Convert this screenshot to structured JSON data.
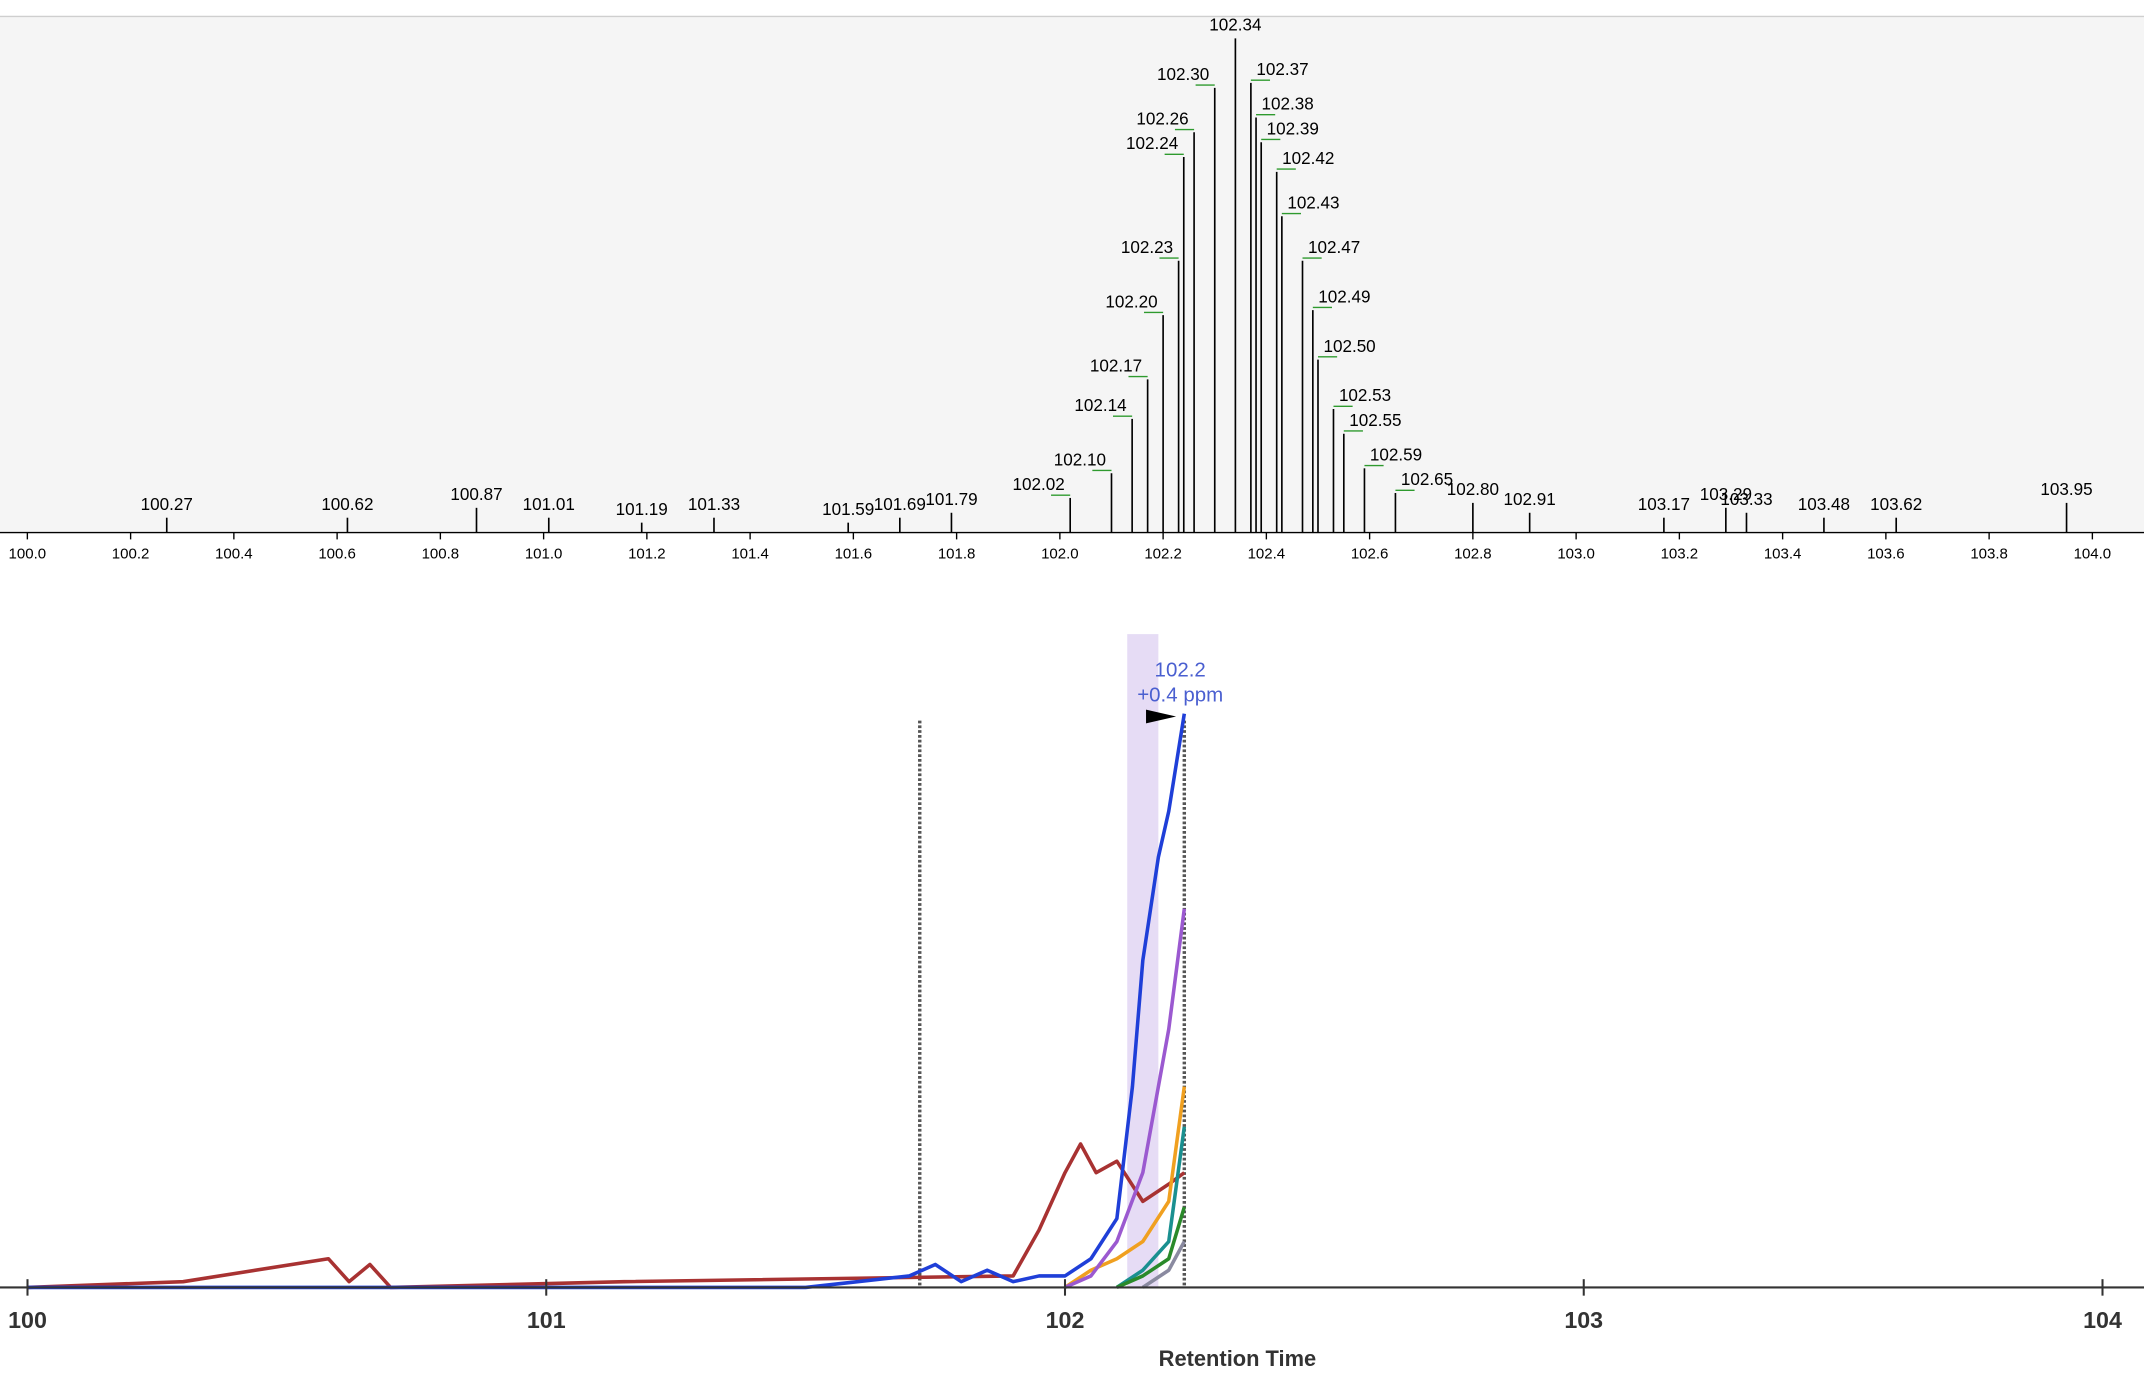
{
  "chart_data": [
    {
      "type": "spectrum",
      "xlim": [
        99.947,
        104.1
      ],
      "ylim": [
        0,
        100
      ],
      "xticks": [
        {
          "value": 100.0,
          "label": "100.0"
        },
        100.2,
        100.4,
        100.6,
        100.8,
        {
          "value": 101.0,
          "label": "101.0"
        },
        101.2,
        101.4,
        101.6,
        101.8,
        {
          "value": 102.0,
          "label": "102.0"
        },
        102.2,
        102.4,
        102.6,
        102.8,
        {
          "value": 103.0,
          "label": "103.0"
        },
        103.2,
        103.4,
        103.6,
        103.8,
        {
          "value": 104.0,
          "label": "104.0"
        }
      ],
      "color": "#000000",
      "label_line_color": "#2e9a2e",
      "x": [
        100.27,
        100.62,
        100.87,
        101.01,
        101.19,
        101.33,
        101.59,
        101.69,
        101.79,
        102.02,
        102.1,
        102.14,
        102.17,
        102.2,
        102.23,
        102.24,
        102.26,
        102.3,
        102.34,
        102.37,
        102.38,
        102.39,
        102.42,
        102.43,
        102.47,
        102.49,
        102.5,
        102.53,
        102.55,
        102.59,
        102.65,
        102.8,
        102.91,
        103.17,
        103.29,
        103.33,
        103.48,
        103.62,
        103.95
      ],
      "x_labels": [
        "100.27",
        "100.62",
        "100.87",
        "101.01",
        "101.19",
        "101.33",
        "101.59",
        "101.69",
        "101.79",
        "102.02",
        "102.10",
        "102.14",
        "102.17",
        "102.20",
        "102.23",
        "102.24",
        "102.26",
        "102.30",
        "102.34",
        "102.37",
        "102.38",
        "102.39",
        "102.42",
        "102.43",
        "102.47",
        "102.49",
        "102.50",
        "102.53",
        "102.55",
        "102.59",
        "102.65",
        "102.80",
        "102.91",
        "103.17",
        "103.29",
        "103.33",
        "103.48",
        "103.62",
        "103.95"
      ],
      "values": [
        3,
        3,
        5,
        3,
        2,
        3,
        2,
        3,
        4,
        7,
        12,
        23,
        31,
        44,
        55,
        76,
        81,
        90,
        100,
        91,
        84,
        79,
        73,
        64,
        55,
        45,
        35,
        25,
        20,
        13,
        8,
        6,
        4,
        3,
        5,
        4,
        3,
        3,
        6
      ]
    },
    {
      "type": "line",
      "xlabel": "Retention Time",
      "xlim": [
        99.947,
        104.08
      ],
      "ylim": [
        0,
        100
      ],
      "xticks": [
        100,
        101,
        102,
        103,
        104
      ],
      "boundaries": [
        101.72,
        102.23
      ],
      "highlight": [
        102.12,
        102.18
      ],
      "annotation": [
        "102.2",
        "+0.4 ppm"
      ],
      "annotation_color": "#4a5fd0",
      "series": [
        {
          "color": "#a83232",
          "x": [
            100,
            100.3,
            100.58,
            100.62,
            100.66,
            100.7,
            101.15,
            101.9,
            101.95,
            102.0,
            102.03,
            102.06,
            102.1,
            102.15,
            102.2,
            102.23
          ],
          "values": [
            0,
            1,
            5,
            1,
            4,
            0,
            1,
            2,
            10,
            20,
            25,
            20,
            22,
            15,
            18,
            20
          ]
        },
        {
          "color": "#f0a020",
          "x": [
            102.0,
            102.05,
            102.1,
            102.15,
            102.2,
            102.23
          ],
          "values": [
            0,
            3,
            5,
            8,
            15,
            35
          ]
        },
        {
          "color": "#1a9090",
          "x": [
            102.1,
            102.15,
            102.2,
            102.23
          ],
          "values": [
            0,
            3,
            8,
            28
          ]
        },
        {
          "color": "#2a8a2a",
          "x": [
            102.1,
            102.15,
            102.2,
            102.23
          ],
          "values": [
            0,
            2,
            5,
            14
          ]
        },
        {
          "color": "#8a8aa0",
          "x": [
            102.15,
            102.2,
            102.23
          ],
          "values": [
            0,
            3,
            8
          ]
        },
        {
          "color": "#9b59d0",
          "x": [
            102.0,
            102.05,
            102.1,
            102.15,
            102.2,
            102.23
          ],
          "values": [
            0,
            2,
            8,
            20,
            45,
            66
          ]
        },
        {
          "color": "#1f3fd8",
          "x": [
            100,
            101.5,
            101.6,
            101.7,
            101.75,
            101.8,
            101.85,
            101.9,
            101.95,
            102.0,
            102.05,
            102.1,
            102.13,
            102.15,
            102.18,
            102.2,
            102.23
          ],
          "values": [
            0,
            0,
            1,
            2,
            4,
            1,
            3,
            1,
            2,
            2,
            5,
            12,
            35,
            57,
            75,
            83,
            100
          ]
        }
      ]
    }
  ]
}
